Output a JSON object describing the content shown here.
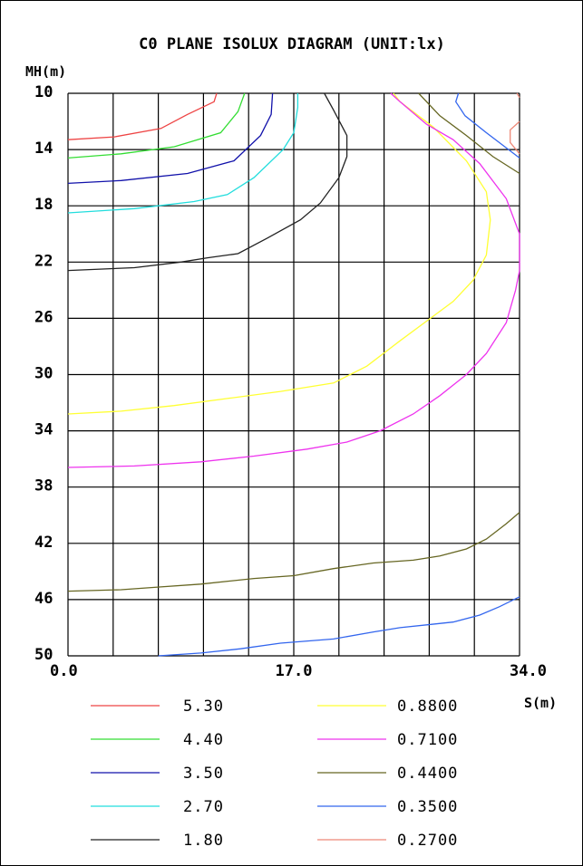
{
  "chart_data": {
    "type": "contour",
    "title": "C0 PLANE ISOLUX DIAGRAM (UNIT:lx)",
    "ylabel": "MH(m)",
    "xlabel": "S(m)",
    "xlim": [
      0,
      34
    ],
    "ylim": [
      10,
      50
    ],
    "x_tick_labels": [
      "0.0",
      "17.0",
      "34.0"
    ],
    "y_tick_labels": [
      "10",
      "14",
      "18",
      "22",
      "26",
      "30",
      "34",
      "38",
      "42",
      "46",
      "50"
    ],
    "grid": true,
    "legend_position": "bottom",
    "series": [
      {
        "name": "5.30",
        "color": "#ee4444",
        "points": [
          [
            0,
            13.3
          ],
          [
            3.5,
            13.1
          ],
          [
            7,
            12.5
          ],
          [
            9,
            11.5
          ],
          [
            11,
            10.6
          ],
          [
            11.2,
            10
          ]
        ]
      },
      {
        "name": "4.40",
        "color": "#33dd33",
        "points": [
          [
            0,
            14.6
          ],
          [
            4,
            14.3
          ],
          [
            8,
            13.8
          ],
          [
            11.5,
            12.8
          ],
          [
            12.8,
            11.3
          ],
          [
            13.3,
            10
          ]
        ]
      },
      {
        "name": "3.50",
        "color": "#1111aa",
        "points": [
          [
            0,
            16.4
          ],
          [
            4,
            16.2
          ],
          [
            9,
            15.7
          ],
          [
            12.5,
            14.8
          ],
          [
            14.5,
            13
          ],
          [
            15.3,
            11.5
          ],
          [
            15.4,
            10
          ]
        ]
      },
      {
        "name": "2.70",
        "color": "#22dddd",
        "points": [
          [
            0,
            18.5
          ],
          [
            5,
            18.2
          ],
          [
            9.5,
            17.7
          ],
          [
            12,
            17.2
          ],
          [
            14,
            16
          ],
          [
            16.2,
            14
          ],
          [
            17,
            12.8
          ],
          [
            17.3,
            11
          ],
          [
            17.3,
            10
          ]
        ]
      },
      {
        "name": "1.80",
        "color": "#222222",
        "points": [
          [
            0,
            22.6
          ],
          [
            5,
            22.4
          ],
          [
            8.5,
            22
          ],
          [
            10.5,
            21.7
          ],
          [
            12.8,
            21.4
          ],
          [
            15,
            20.3
          ],
          [
            17.5,
            19
          ],
          [
            19,
            17.8
          ],
          [
            20.4,
            16
          ],
          [
            21,
            14.5
          ],
          [
            21,
            13
          ],
          [
            20,
            11.2
          ],
          [
            19.3,
            10
          ]
        ]
      },
      {
        "name": "0.8800",
        "color": "#ffff33",
        "points": [
          [
            0,
            32.8
          ],
          [
            4,
            32.6
          ],
          [
            8,
            32.2
          ],
          [
            12,
            31.7
          ],
          [
            16,
            31.2
          ],
          [
            20,
            30.6
          ],
          [
            22.5,
            29.4
          ],
          [
            25,
            27.6
          ],
          [
            27,
            26.2
          ],
          [
            29,
            24.8
          ],
          [
            30.5,
            23.3
          ],
          [
            31.5,
            21.5
          ],
          [
            31.8,
            19
          ],
          [
            31.5,
            17
          ],
          [
            30,
            14.8
          ],
          [
            27.5,
            12.4
          ],
          [
            25,
            10.6
          ],
          [
            24.5,
            10
          ]
        ]
      },
      {
        "name": "0.7100",
        "color": "#ee33ee",
        "points": [
          [
            0,
            36.6
          ],
          [
            5,
            36.5
          ],
          [
            10,
            36.2
          ],
          [
            14,
            35.8
          ],
          [
            18,
            35.3
          ],
          [
            21,
            34.8
          ],
          [
            23.5,
            34
          ],
          [
            26,
            32.8
          ],
          [
            28,
            31.5
          ],
          [
            30,
            30
          ],
          [
            31.5,
            28.5
          ],
          [
            33,
            26.3
          ],
          [
            33.7,
            24
          ],
          [
            34,
            22.6
          ],
          [
            34,
            20
          ],
          [
            33,
            17.5
          ],
          [
            31,
            15
          ],
          [
            29,
            13.3
          ],
          [
            27,
            12.2
          ],
          [
            25,
            10.6
          ],
          [
            24.3,
            10
          ]
        ]
      },
      {
        "name": "0.4400",
        "color": "#666622",
        "points": [
          [
            0,
            45.4
          ],
          [
            4,
            45.3
          ],
          [
            7,
            45.1
          ],
          [
            10,
            44.9
          ],
          [
            14,
            44.5
          ],
          [
            17,
            44.3
          ],
          [
            20,
            43.8
          ],
          [
            23,
            43.4
          ],
          [
            26,
            43.2
          ],
          [
            28,
            42.9
          ],
          [
            30,
            42.4
          ],
          [
            31.5,
            41.7
          ],
          [
            33,
            40.6
          ],
          [
            34,
            39.8
          ]
        ]
      },
      {
        "name": "0.3500",
        "color": "#3366ee",
        "points": [
          [
            6.8,
            50
          ],
          [
            10,
            49.8
          ],
          [
            13,
            49.5
          ],
          [
            16,
            49.1
          ],
          [
            20,
            48.8
          ],
          [
            23,
            48.3
          ],
          [
            25,
            48
          ],
          [
            27,
            47.8
          ],
          [
            29,
            47.6
          ],
          [
            31,
            47.1
          ],
          [
            32.5,
            46.5
          ],
          [
            34,
            45.8
          ]
        ]
      },
      {
        "name": "0.2700",
        "color": "#ee8877",
        "points": [
          [
            34,
            12
          ],
          [
            33.3,
            12.6
          ],
          [
            33.3,
            13.5
          ],
          [
            34,
            14.3
          ]
        ]
      },
      {
        "name": "0.3500",
        "color": "#3366ee",
        "points": [
          [
            29.4,
            10
          ],
          [
            29.2,
            10.6
          ],
          [
            29.9,
            11.6
          ],
          [
            31.5,
            12.8
          ],
          [
            34,
            14.6
          ]
        ]
      },
      {
        "name": "0.4400",
        "color": "#666622",
        "points": [
          [
            26.4,
            10
          ],
          [
            28,
            11.6
          ],
          [
            30,
            13
          ],
          [
            32,
            14.5
          ],
          [
            34,
            15.7
          ]
        ]
      },
      {
        "name": "0.2700",
        "color": "#ee8877",
        "points": [
          [
            33.8,
            10
          ],
          [
            34,
            10.3
          ]
        ]
      }
    ],
    "legend": [
      {
        "label": "5.30",
        "color": "#ee4444"
      },
      {
        "label": "4.40",
        "color": "#33dd33"
      },
      {
        "label": "3.50",
        "color": "#1111aa"
      },
      {
        "label": "2.70",
        "color": "#22dddd"
      },
      {
        "label": "1.80",
        "color": "#222222"
      },
      {
        "label": "0.8800",
        "color": "#ffff33"
      },
      {
        "label": "0.7100",
        "color": "#ee33ee"
      },
      {
        "label": "0.4400",
        "color": "#666622"
      },
      {
        "label": "0.3500",
        "color": "#3366ee"
      },
      {
        "label": "0.2700",
        "color": "#ee8877"
      }
    ]
  }
}
